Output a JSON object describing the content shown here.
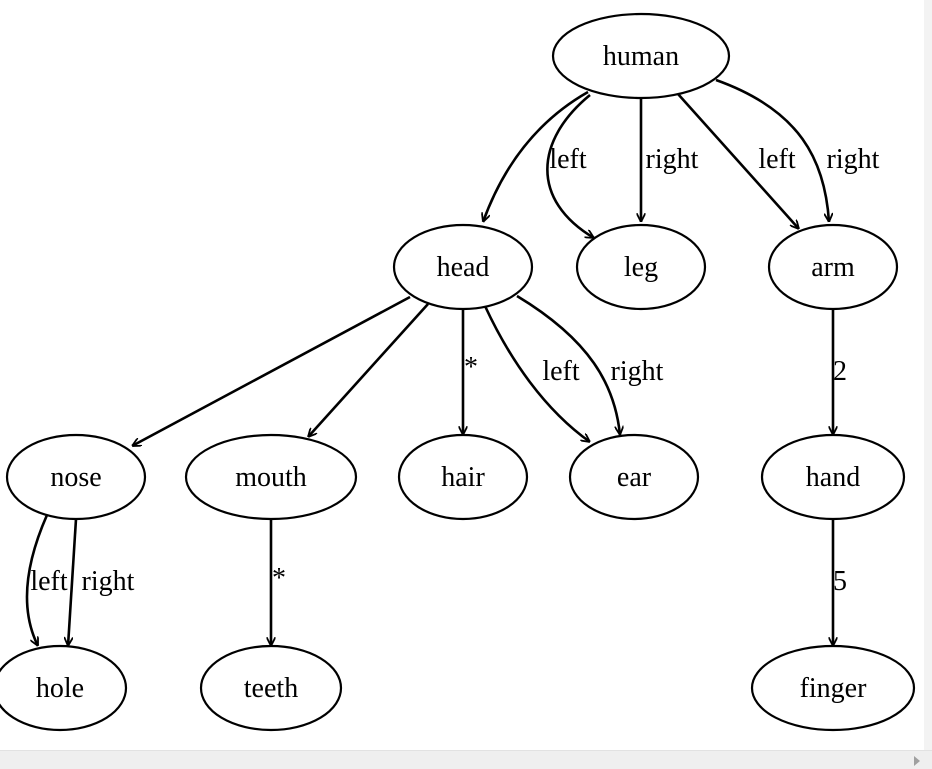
{
  "diagram": {
    "nodes": [
      {
        "id": "human",
        "label": "human"
      },
      {
        "id": "head",
        "label": "head"
      },
      {
        "id": "leg",
        "label": "leg"
      },
      {
        "id": "arm",
        "label": "arm"
      },
      {
        "id": "nose",
        "label": "nose"
      },
      {
        "id": "mouth",
        "label": "mouth"
      },
      {
        "id": "hair",
        "label": "hair"
      },
      {
        "id": "ear",
        "label": "ear"
      },
      {
        "id": "hand",
        "label": "hand"
      },
      {
        "id": "hole",
        "label": "hole"
      },
      {
        "id": "teeth",
        "label": "teeth"
      },
      {
        "id": "finger",
        "label": "finger"
      }
    ],
    "edges": [
      {
        "from": "human",
        "to": "head",
        "label": ""
      },
      {
        "from": "human",
        "to": "leg",
        "label": "left"
      },
      {
        "from": "human",
        "to": "leg",
        "label": "right"
      },
      {
        "from": "human",
        "to": "arm",
        "label": "left"
      },
      {
        "from": "human",
        "to": "arm",
        "label": "right"
      },
      {
        "from": "head",
        "to": "nose",
        "label": ""
      },
      {
        "from": "head",
        "to": "mouth",
        "label": ""
      },
      {
        "from": "head",
        "to": "hair",
        "label": "*"
      },
      {
        "from": "head",
        "to": "ear",
        "label": "left"
      },
      {
        "from": "head",
        "to": "ear",
        "label": "right"
      },
      {
        "from": "arm",
        "to": "hand",
        "label": "2"
      },
      {
        "from": "nose",
        "to": "hole",
        "label": "left"
      },
      {
        "from": "nose",
        "to": "hole",
        "label": "right"
      },
      {
        "from": "mouth",
        "to": "teeth",
        "label": "*"
      },
      {
        "from": "hand",
        "to": "finger",
        "label": "5"
      }
    ]
  }
}
